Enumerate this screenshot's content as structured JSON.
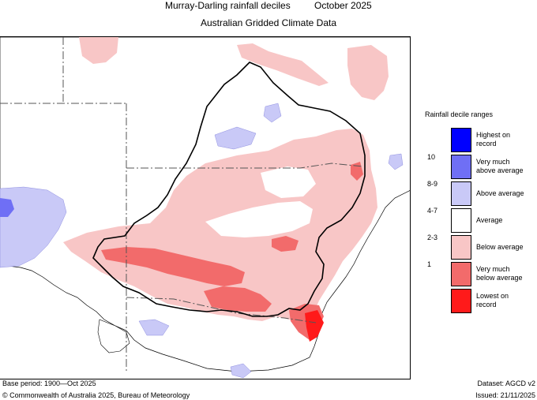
{
  "title": {
    "left": "Murray-Darling rainfall deciles",
    "right": "October 2025"
  },
  "subtitle": "Australian Gridded Climate Data",
  "legend": {
    "title": "Rainfall decile ranges",
    "items": [
      {
        "label_line1": "Highest on",
        "label_line2": "record",
        "decile": "",
        "color": "#0000ff"
      },
      {
        "label_line1": "Very much",
        "label_line2": "above average",
        "decile": "10",
        "color": "#6f6ff5"
      },
      {
        "label_line1": "Above average",
        "label_line2": "",
        "decile": "8-9",
        "color": "#c9c9f7"
      },
      {
        "label_line1": "Average",
        "label_line2": "",
        "decile": "4-7",
        "color": "#ffffff"
      },
      {
        "label_line1": "Below average",
        "label_line2": "",
        "decile": "2-3",
        "color": "#f8c6c6"
      },
      {
        "label_line1": "Very much",
        "label_line2": "below average",
        "decile": "1",
        "color": "#f26b6b"
      },
      {
        "label_line1": "Lowest on",
        "label_line2": "record",
        "decile": "",
        "color": "#ff1a1a"
      }
    ]
  },
  "footer": {
    "base_period": "Base period: 1900—Oct 2025",
    "dataset": "Dataset: AGCD v2",
    "copyright": "© Commonwealth of Australia 2025, Bureau of Meteorology",
    "issued": "Issued: 21/11/2025"
  }
}
